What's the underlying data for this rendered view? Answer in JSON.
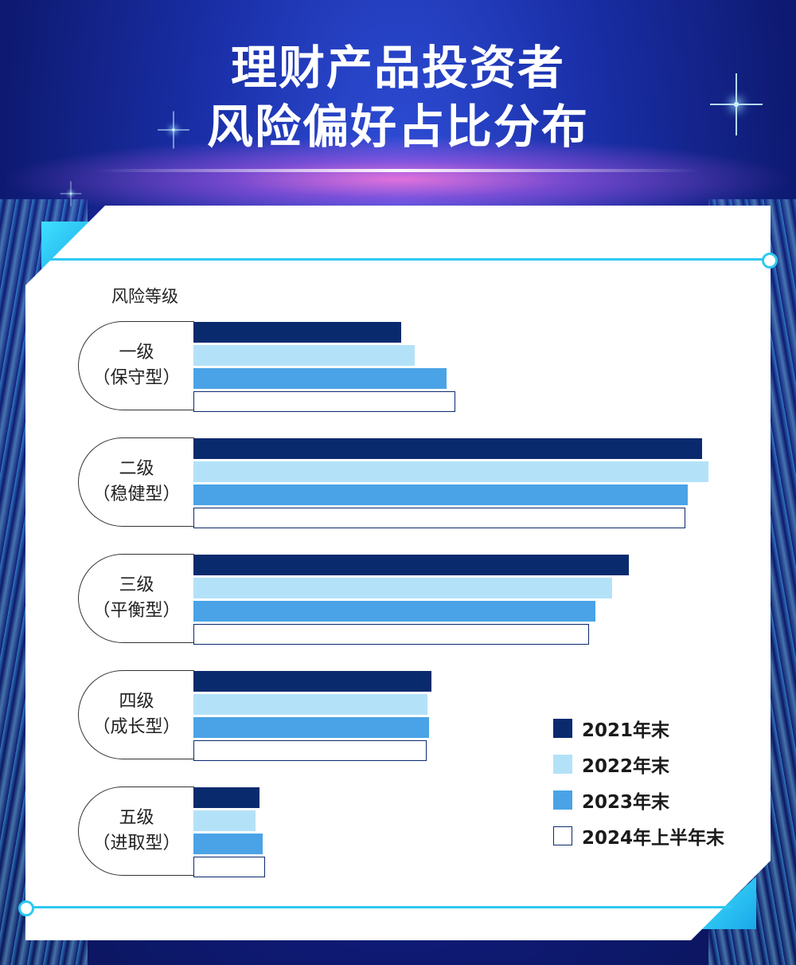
{
  "colors": {
    "s2021": "#0a2a6e",
    "s2022": "#b3e2f8",
    "s2023": "#4aa3e6",
    "s2024": "#ffffff",
    "s2024_border": "#0a2a6e"
  },
  "chart_data": {
    "type": "bar",
    "orientation": "horizontal",
    "title_line1": "理财产品投资者",
    "title_line2": "风险偏好占比分布",
    "ylabel": "风险等级",
    "categories": [
      {
        "level": "一级",
        "type": "（保守型）"
      },
      {
        "level": "二级",
        "type": "（稳健型）"
      },
      {
        "level": "三级",
        "type": "（平衡型）"
      },
      {
        "level": "四级",
        "type": "（成长型）"
      },
      {
        "level": "五级",
        "type": "（进取型）"
      }
    ],
    "series": [
      {
        "name": "2021年末",
        "color": "#0a2a6e",
        "values": [
          18.0,
          44.1,
          37.7,
          20.6,
          5.7
        ]
      },
      {
        "name": "2022年末",
        "color": "#b3e2f8",
        "values": [
          19.2,
          44.6,
          36.3,
          20.3,
          5.4
        ]
      },
      {
        "name": "2023年末",
        "color": "#4aa3e6",
        "values": [
          21.9,
          42.8,
          34.8,
          20.4,
          6.0
        ]
      },
      {
        "name": "2024年上半年末",
        "color": "#ffffff",
        "values": [
          22.7,
          42.6,
          34.3,
          20.2,
          6.2
        ]
      }
    ],
    "xlim": [
      0,
      50
    ],
    "grid": false,
    "legend_position": "bottom-right"
  }
}
